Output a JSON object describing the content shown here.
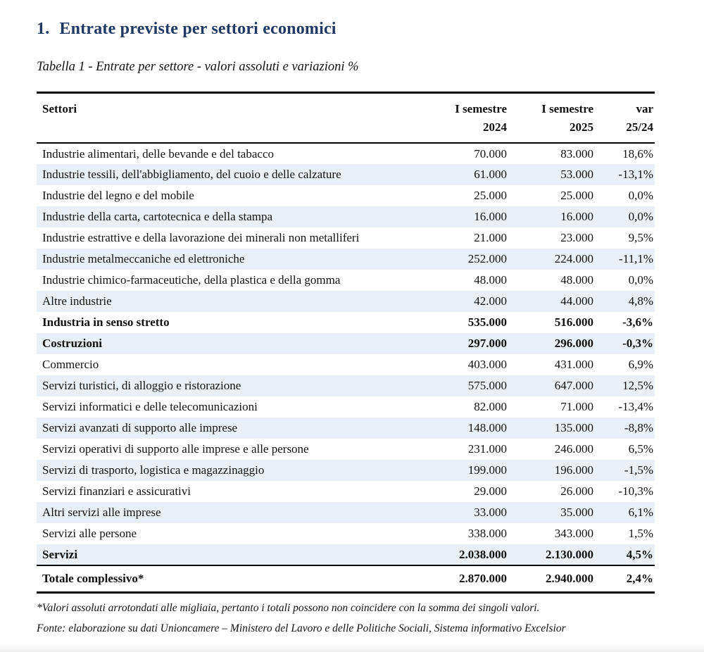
{
  "header": {
    "number": "1.",
    "title": "Entrate previste per settori economici",
    "caption": "Tabella 1 - Entrate per settore - valori assoluti e variazioni %"
  },
  "table": {
    "headers": {
      "sector": "Settori",
      "col2024_line1": "I semestre",
      "col2024_line2": "2024",
      "col2025_line1": "I semestre",
      "col2025_line2": "2025",
      "colvar_line1": "var",
      "colvar_line2": "25/24"
    },
    "rows": [
      {
        "label": "Industrie alimentari, delle bevande e del tabacco",
        "v2024": "70.000",
        "v2025": "83.000",
        "variation": "18,6%",
        "bold": false,
        "total": false
      },
      {
        "label": "Industrie tessili, dell'abbigliamento, del cuoio e delle calzature",
        "v2024": "61.000",
        "v2025": "53.000",
        "variation": "-13,1%",
        "bold": false,
        "total": false
      },
      {
        "label": "Industrie del legno e del mobile",
        "v2024": "25.000",
        "v2025": "25.000",
        "variation": "0,0%",
        "bold": false,
        "total": false
      },
      {
        "label": "Industrie della carta, cartotecnica e della stampa",
        "v2024": "16.000",
        "v2025": "16.000",
        "variation": "0,0%",
        "bold": false,
        "total": false
      },
      {
        "label": "Industrie estrattive e della lavorazione dei minerali non metalliferi",
        "v2024": "21.000",
        "v2025": "23.000",
        "variation": "9,5%",
        "bold": false,
        "total": false
      },
      {
        "label": "Industrie metalmeccaniche ed elettroniche",
        "v2024": "252.000",
        "v2025": "224.000",
        "variation": "-11,1%",
        "bold": false,
        "total": false
      },
      {
        "label": "Industrie chimico-farmaceutiche, della plastica e della gomma",
        "v2024": "48.000",
        "v2025": "48.000",
        "variation": "0,0%",
        "bold": false,
        "total": false
      },
      {
        "label": "Altre industrie",
        "v2024": "42.000",
        "v2025": "44.000",
        "variation": "4,8%",
        "bold": false,
        "total": false
      },
      {
        "label": "Industria in senso stretto",
        "v2024": "535.000",
        "v2025": "516.000",
        "variation": "-3,6%",
        "bold": true,
        "total": false
      },
      {
        "label": "Costruzioni",
        "v2024": "297.000",
        "v2025": "296.000",
        "variation": "-0,3%",
        "bold": true,
        "total": false
      },
      {
        "label": "Commercio",
        "v2024": "403.000",
        "v2025": "431.000",
        "variation": "6,9%",
        "bold": false,
        "total": false
      },
      {
        "label": "Servizi turistici, di alloggio e ristorazione",
        "v2024": "575.000",
        "v2025": "647.000",
        "variation": "12,5%",
        "bold": false,
        "total": false
      },
      {
        "label": "Servizi informatici e delle telecomunicazioni",
        "v2024": "82.000",
        "v2025": "71.000",
        "variation": "-13,4%",
        "bold": false,
        "total": false
      },
      {
        "label": "Servizi avanzati di supporto alle imprese",
        "v2024": "148.000",
        "v2025": "135.000",
        "variation": "-8,8%",
        "bold": false,
        "total": false
      },
      {
        "label": "Servizi operativi di supporto alle imprese e alle persone",
        "v2024": "231.000",
        "v2025": "246.000",
        "variation": "6,5%",
        "bold": false,
        "total": false
      },
      {
        "label": "Servizi di trasporto, logistica e magazzinaggio",
        "v2024": "199.000",
        "v2025": "196.000",
        "variation": "-1,5%",
        "bold": false,
        "total": false
      },
      {
        "label": "Servizi finanziari e assicurativi",
        "v2024": "29.000",
        "v2025": "26.000",
        "variation": "-10,3%",
        "bold": false,
        "total": false
      },
      {
        "label": "Altri servizi alle imprese",
        "v2024": "33.000",
        "v2025": "35.000",
        "variation": "6,1%",
        "bold": false,
        "total": false
      },
      {
        "label": "Servizi alle persone",
        "v2024": "338.000",
        "v2025": "343.000",
        "variation": "1,5%",
        "bold": false,
        "total": false
      },
      {
        "label": "Servizi",
        "v2024": "2.038.000",
        "v2025": "2.130.000",
        "variation": "4,5%",
        "bold": true,
        "total": false
      },
      {
        "label": "Totale complessivo*",
        "v2024": "2.870.000",
        "v2025": "2.940.000",
        "variation": "2,4%",
        "bold": true,
        "total": true
      }
    ]
  },
  "footer": {
    "note": "*Valori assoluti arrotondati alle migliaia, pertanto i totali possono non coincidere con la somma dei singoli valori.",
    "source": "Fonte: elaborazione su dati Unioncamere – Ministero del Lavoro e delle Politiche Sociali, Sistema informativo Excelsior"
  },
  "colors": {
    "title_navy": "#1f3864",
    "row_stripe_blue": "#eaf0f8",
    "rule_black": "#000000"
  }
}
